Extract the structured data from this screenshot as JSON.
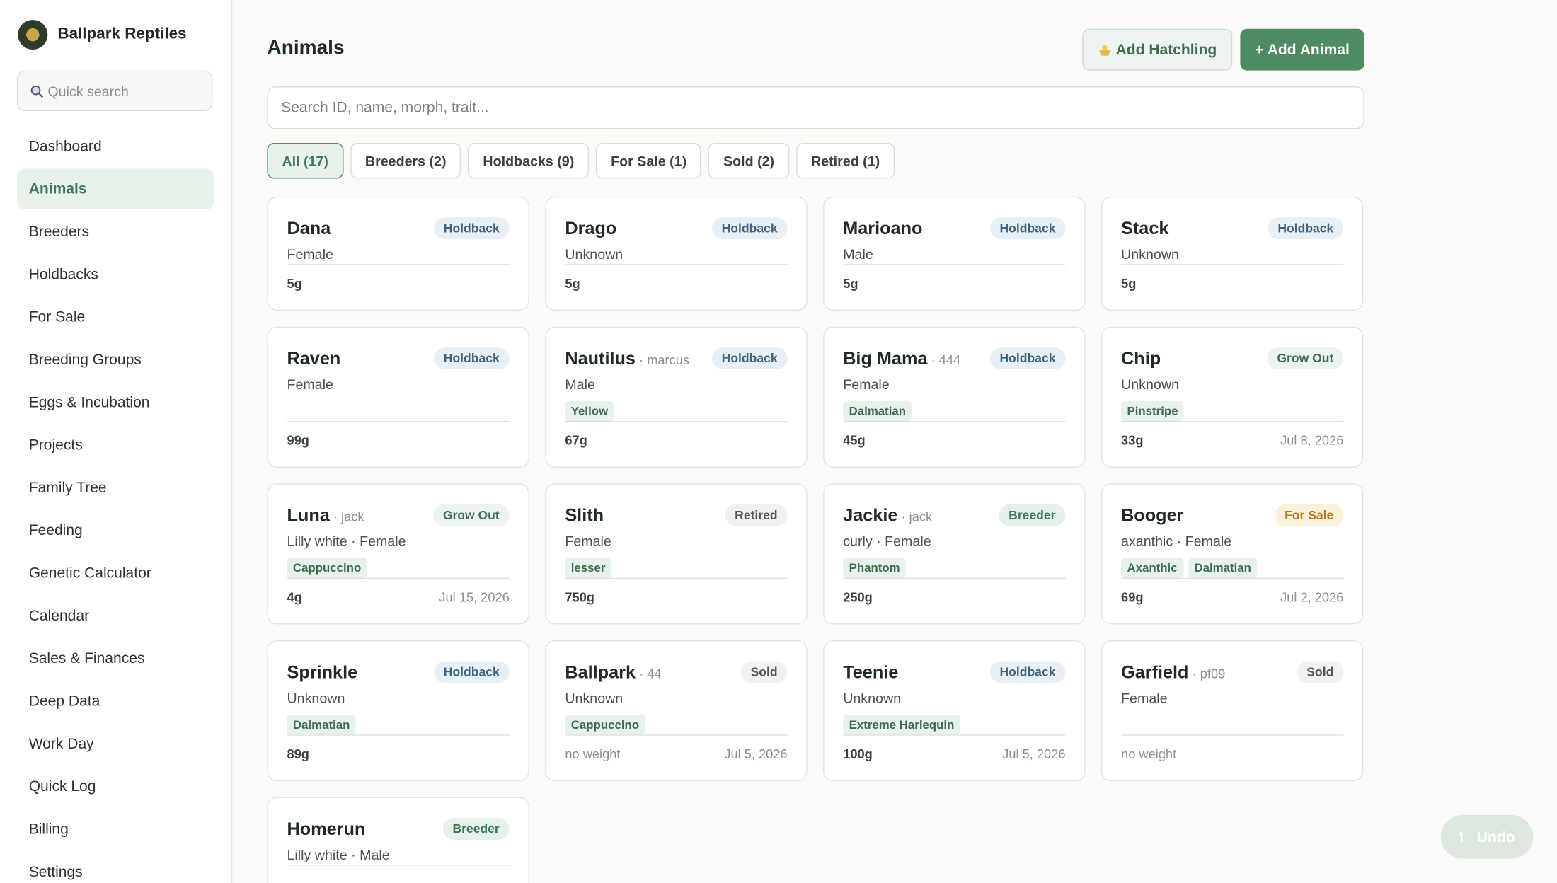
{
  "sidebar": {
    "brand": "Ballpark Reptiles",
    "search_placeholder": "Quick search",
    "nav": [
      "Dashboard",
      "Animals",
      "Breeders",
      "Holdbacks",
      "For Sale",
      "Breeding Groups",
      "Eggs & Incubation",
      "Projects",
      "Family Tree",
      "Feeding",
      "Genetic Calculator",
      "Calendar",
      "Sales & Finances",
      "Deep Data",
      "Work Day",
      "Quick Log",
      "Billing",
      "Settings"
    ],
    "active": 1
  },
  "header": {
    "title": "Animals",
    "buttons": [
      "Add Hatchling",
      "+ Add Animal"
    ]
  },
  "search_placeholder": "Search ID, name, morph, trait...",
  "filters": [
    "All (17)",
    "Breeders (2)",
    "Holdbacks (9)",
    "For Sale (1)",
    "Sold (2)",
    "Retired (1)"
  ],
  "active_filter": 0,
  "cards": [
    {
      "name": "Dana",
      "status": {
        "text": "Holdback",
        "color": "#3f6480",
        "bg": "#e9f0f5"
      },
      "subtitle": "Female",
      "weight": "5g"
    },
    {
      "name": "Drago",
      "status": {
        "text": "Holdback",
        "color": "#3f6480",
        "bg": "#e9f0f5"
      },
      "subtitle": "Unknown",
      "weight": "5g"
    },
    {
      "name": "Marioano",
      "status": {
        "text": "Holdback",
        "color": "#3f6480",
        "bg": "#e9f0f5"
      },
      "subtitle": "Male",
      "weight": "5g"
    },
    {
      "name": "Stack",
      "status": {
        "text": "Holdback",
        "color": "#3f6480",
        "bg": "#e9f0f5"
      },
      "subtitle": "Unknown",
      "weight": "5g"
    },
    {
      "name": "Raven",
      "status": {
        "text": "Holdback",
        "color": "#3f6480",
        "bg": "#e9f0f5"
      },
      "subtitle": "Female",
      "weight": "99g"
    },
    {
      "name": "Nautilus",
      "id": "marcus",
      "status": {
        "text": "Holdback",
        "color": "#3f6480",
        "bg": "#e9f0f5"
      },
      "subtitle": "Male",
      "tags": [
        "Yellow"
      ],
      "weight": "67g"
    },
    {
      "name": "Big Mama",
      "id": "444",
      "status": {
        "text": "Holdback",
        "color": "#3f6480",
        "bg": "#e9f0f5"
      },
      "subtitle": "Female",
      "tags": [
        "Dalmatian"
      ],
      "weight": "45g"
    },
    {
      "name": "Chip",
      "status": {
        "text": "Grow Out",
        "color": "#3f6f58",
        "bg": "#edf3ef"
      },
      "subtitle": "Unknown",
      "tags": [
        "Pinstripe"
      ],
      "weight": "33g",
      "date": "Jul 8, 2026"
    },
    {
      "name": "Luna",
      "id": "jack",
      "status": {
        "text": "Grow Out",
        "color": "#3f6f58",
        "bg": "#edf3ef"
      },
      "subtitle": "Lilly white · Female",
      "tags": [
        "Cappuccino"
      ],
      "weight": "4g",
      "date": "Jul 15, 2026"
    },
    {
      "name": "Slith",
      "status": {
        "text": "Retired",
        "color": "#555555",
        "bg": "#f1f1ef"
      },
      "subtitle": "Female",
      "tags": [
        "lesser"
      ],
      "weight": "750g"
    },
    {
      "name": "Jackie",
      "id": "jack",
      "status": {
        "text": "Breeder",
        "color": "#3b7a52",
        "bg": "#e6f1e9"
      },
      "subtitle": "curly · Female",
      "tags": [
        "Phantom"
      ],
      "weight": "250g"
    },
    {
      "name": "Booger",
      "status": {
        "text": "For Sale",
        "color": "#b07a1e",
        "bg": "#fbf0dc"
      },
      "subtitle": "axanthic · Female",
      "tags": [
        "Axanthic",
        "Dalmatian"
      ],
      "weight": "69g",
      "date": "Jul 2, 2026"
    },
    {
      "name": "Sprinkle",
      "status": {
        "text": "Holdback",
        "color": "#3f6480",
        "bg": "#e9f0f5"
      },
      "subtitle": "Unknown",
      "tags": [
        "Dalmatian"
      ],
      "weight": "89g"
    },
    {
      "name": "Ballpark",
      "id": "44",
      "status": {
        "text": "Sold",
        "color": "#555555",
        "bg": "#f1f1ef"
      },
      "subtitle": "Unknown",
      "tags": [
        "Cappuccino"
      ],
      "weight": "no weight",
      "weight_muted": true,
      "date": "Jul 5, 2026"
    },
    {
      "name": "Teenie",
      "status": {
        "text": "Holdback",
        "color": "#3f6480",
        "bg": "#e9f0f5"
      },
      "subtitle": "Unknown",
      "tags": [
        "Extreme Harlequin"
      ],
      "weight": "100g",
      "date": "Jul 5, 2026"
    },
    {
      "name": "Garfield",
      "id": "pf09",
      "status": {
        "text": "Sold",
        "color": "#555555",
        "bg": "#f1f1ef"
      },
      "subtitle": "Female",
      "weight": "no weight",
      "weight_muted": true
    },
    {
      "name": "Homerun",
      "status": {
        "text": "Breeder",
        "color": "#3b7a52",
        "bg": "#e6f1e9"
      },
      "subtitle": "Lilly white · Male"
    }
  ],
  "undo": "Undo"
}
